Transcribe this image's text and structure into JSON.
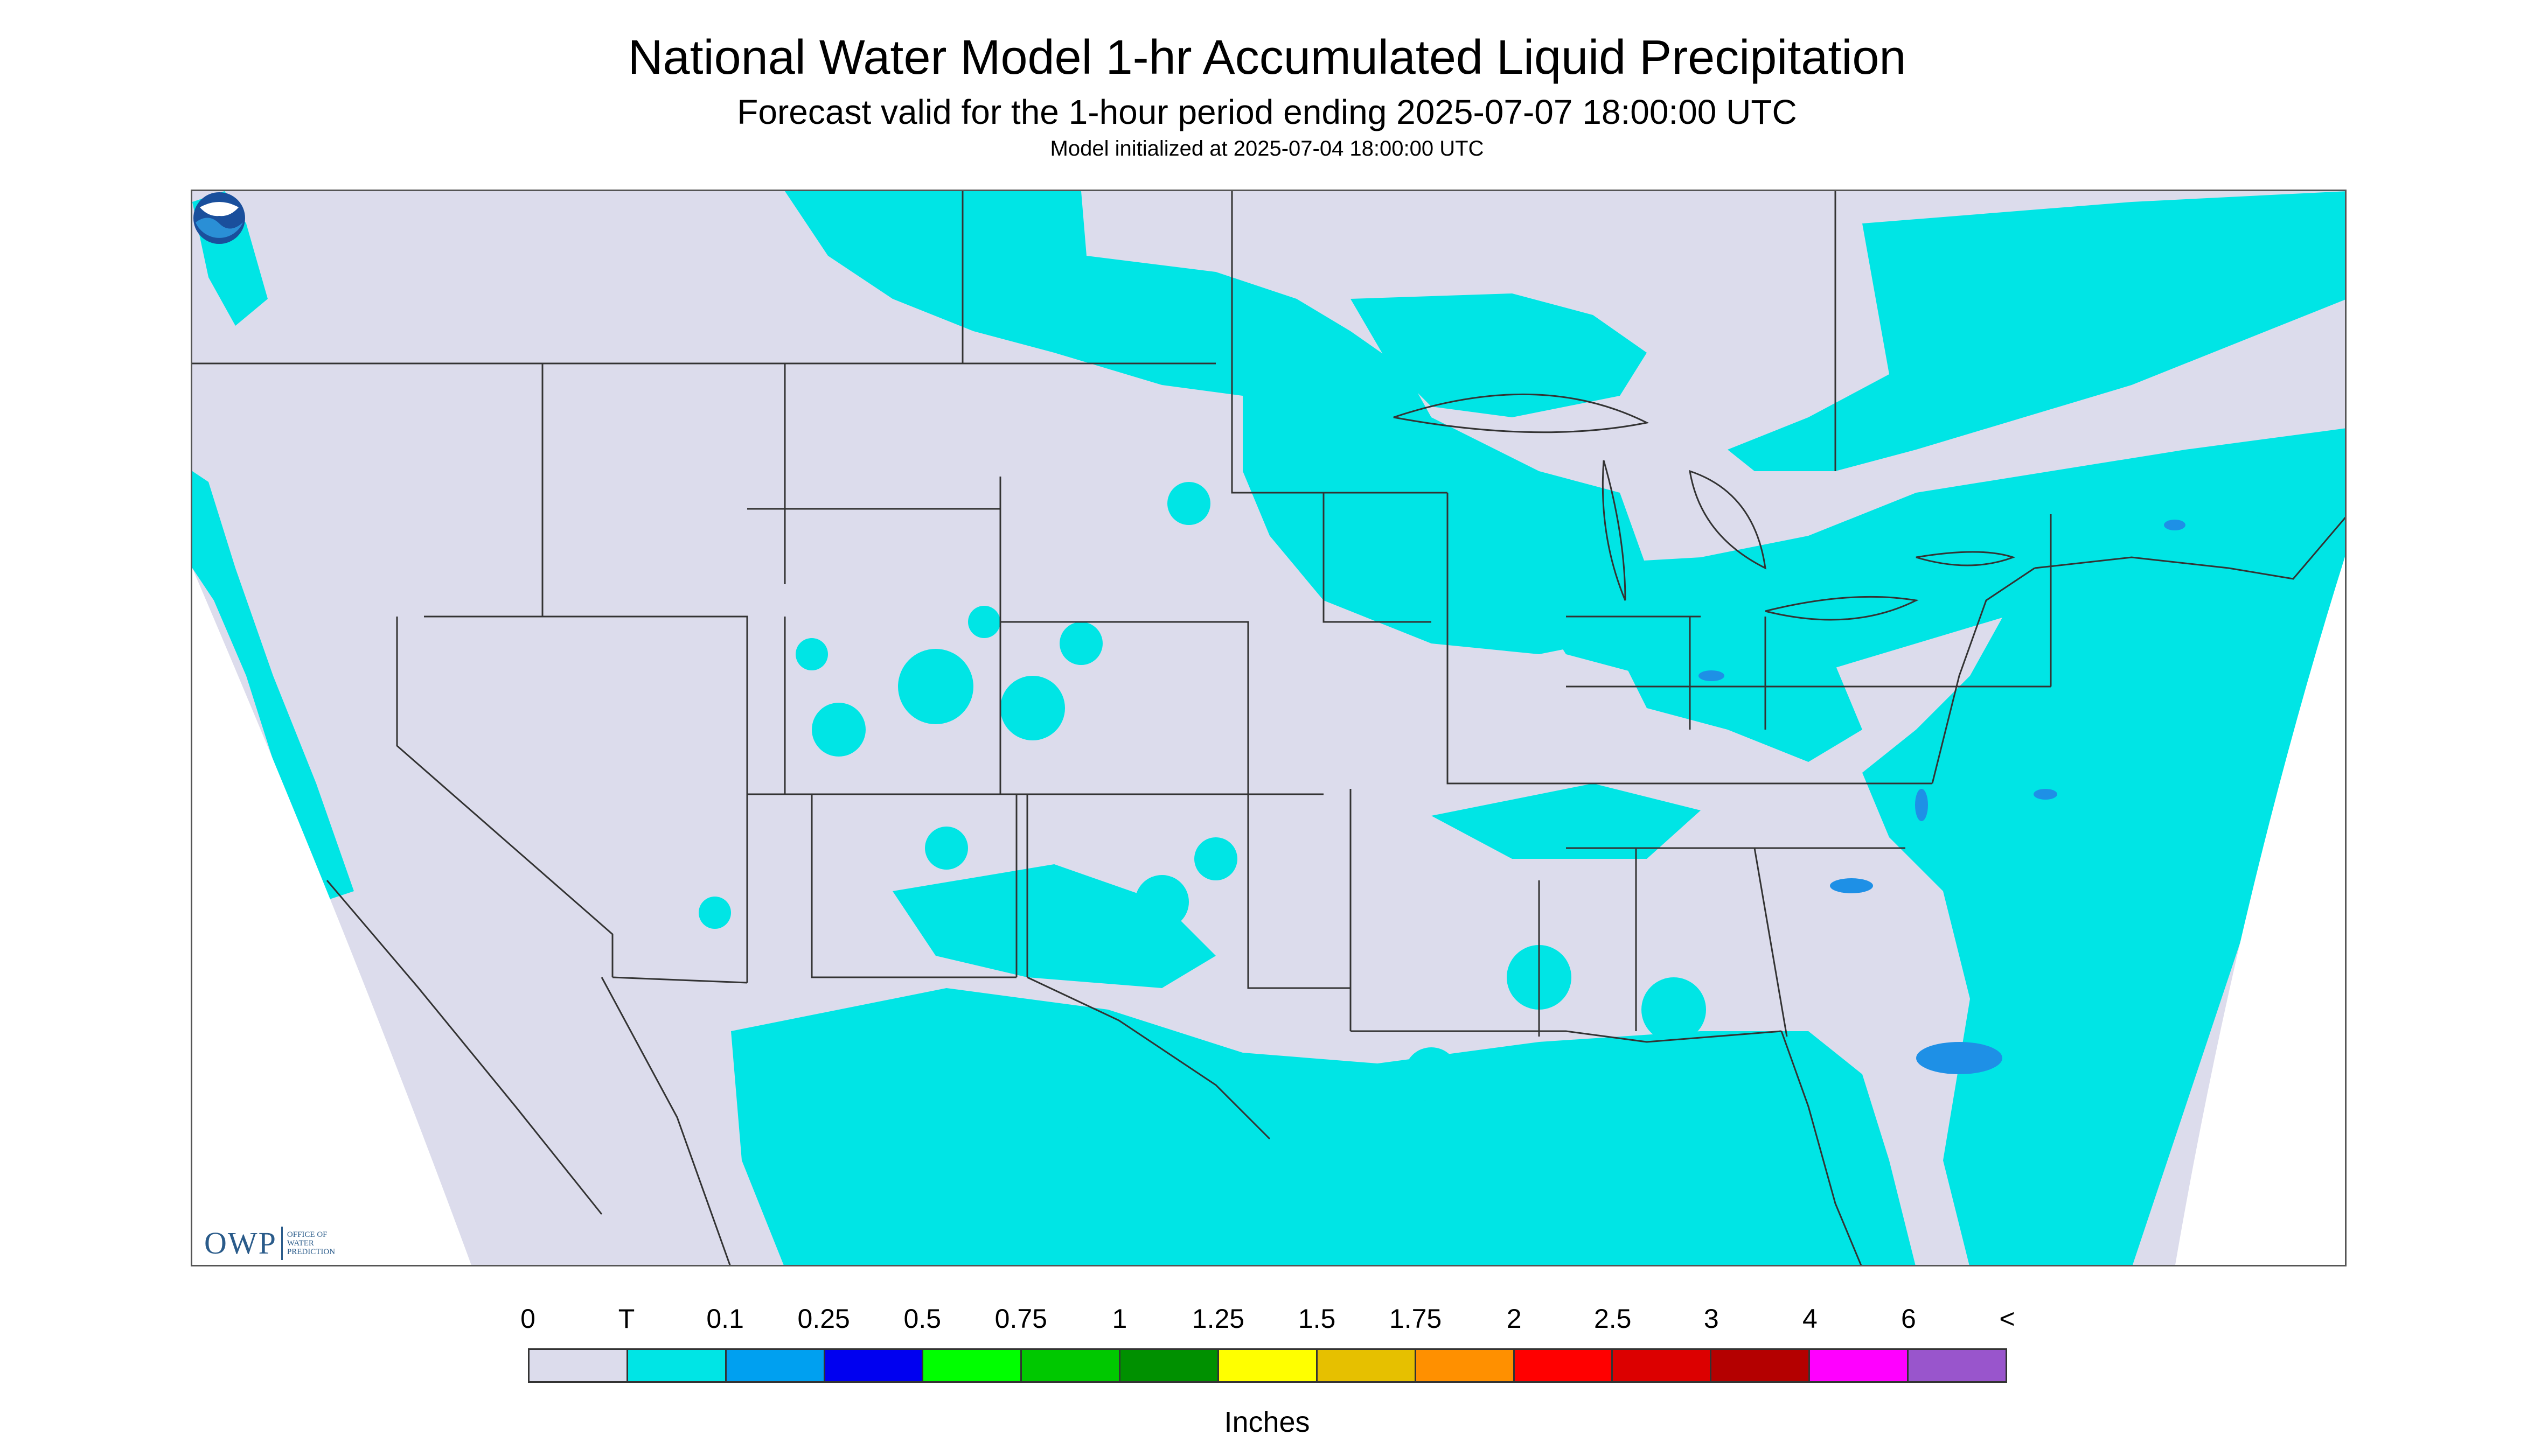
{
  "title": "National Water Model 1-hr Accumulated Liquid Precipitation",
  "subtitle": "Forecast valid for the 1-hour period ending 2025-07-07 18:00:00 UTC",
  "init_text": "Model initialized at 2025-07-04 18:00:00 UTC",
  "logo": {
    "owp_mark": "OWP",
    "owp_sub": "OFFICE OF\nWATER\nPREDICTION",
    "noaa_icon": "noaa-logo-icon"
  },
  "map": {
    "background": "#dcdcec",
    "precip_color": "#00e5e5",
    "heavy_color": "#1e90e6",
    "border_color": "#333333"
  },
  "legend": {
    "labels": [
      "0",
      "T",
      "0.1",
      "0.25",
      "0.5",
      "0.75",
      "1",
      "1.25",
      "1.5",
      "1.75",
      "2",
      "2.5",
      "3",
      "4",
      "6",
      "<"
    ],
    "colors": [
      "#dcdcec",
      "#00e5e5",
      "#00a0f0",
      "#0000f0",
      "#00ff00",
      "#00c800",
      "#009000",
      "#ffff00",
      "#e6c000",
      "#ff9000",
      "#ff0000",
      "#dc0000",
      "#b40000",
      "#ff00ff",
      "#9955cc"
    ],
    "units": "Inches"
  }
}
